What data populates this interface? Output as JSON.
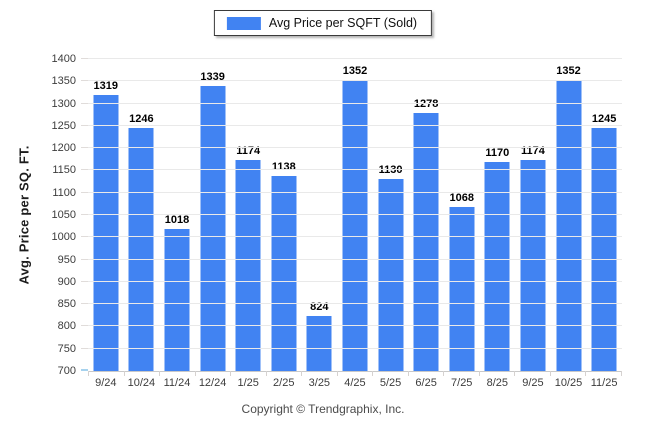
{
  "legend": {
    "label": "Avg Price per SQFT (Sold)"
  },
  "chart_data": {
    "type": "bar",
    "title": "",
    "categories": [
      "9/24",
      "10/24",
      "11/24",
      "12/24",
      "1/25",
      "2/25",
      "3/25",
      "4/25",
      "5/25",
      "6/25",
      "7/25",
      "8/25",
      "9/25",
      "10/25",
      "11/25"
    ],
    "series": [
      {
        "name": "Avg Price per SQFT (Sold)",
        "values": [
          1319,
          1246,
          1018,
          1339,
          1174,
          1138,
          824,
          1352,
          1130,
          1278,
          1068,
          1170,
          1174,
          1352,
          1245
        ]
      }
    ],
    "xlabel": "",
    "ylabel": "Avg. Price per SQ. FT.",
    "ylim": [
      700,
      1400
    ],
    "ytick_step": 50,
    "grid": "horizontal",
    "legend_position": "top-center",
    "bar_color": "#4183f2",
    "gridline_color": "#e9e9e9",
    "value_labels": true
  },
  "footer": {
    "text": "Copyright © Trendgraphix, Inc."
  }
}
